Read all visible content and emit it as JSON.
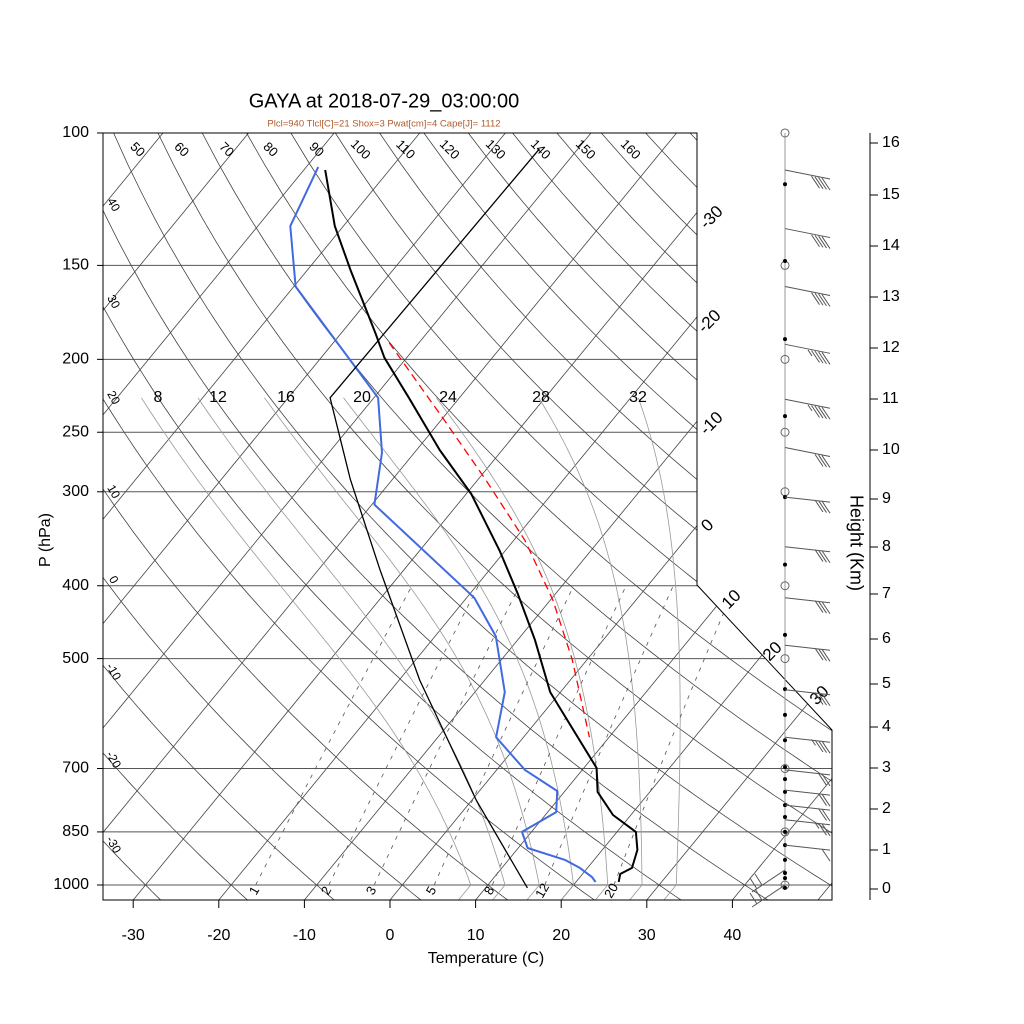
{
  "chart_data": {
    "type": "line",
    "subtype": "skew-T log-P sounding",
    "title": "GAYA at 2018-07-29_03:00:00",
    "subtitle": "Plcl=940 Tlcl[C]=21 Shox=3 Pwat[cm]=4 Cape[J]= 1112",
    "xlabel": "Temperature (C)",
    "ylabel": "P (hPa)",
    "y2label": "Height (Km)",
    "xlim": [
      -33.5,
      51.5
    ],
    "ylim_hpa": [
      1047,
      100
    ],
    "x_ticks": [
      -30,
      -20,
      -10,
      0,
      10,
      20,
      30,
      40
    ],
    "pressure_ticks": [
      100,
      150,
      200,
      250,
      300,
      400,
      500,
      700,
      850,
      1000
    ],
    "height_ticks_km": [
      0,
      1,
      2,
      3,
      4,
      5,
      6,
      7,
      8,
      9,
      10,
      11,
      12,
      13,
      14,
      15,
      16
    ],
    "isotherm_labels": [
      -30,
      -20,
      -10,
      0,
      10,
      20,
      30
    ],
    "dry_adiabat_labels_top": [
      50,
      60,
      70,
      80,
      90,
      100,
      110,
      120,
      130,
      140,
      150,
      160
    ],
    "dry_adiabat_labels_left": [
      40,
      30,
      20,
      10,
      0,
      -10,
      -20,
      -30
    ],
    "moist_adiabat_labels": [
      8,
      12,
      16,
      20,
      24,
      28,
      32
    ],
    "mixing_ratio_labels": [
      1,
      2,
      3,
      5,
      8,
      12,
      20
    ],
    "series": [
      {
        "name": "temperature",
        "color": "#000000",
        "p": [
          112,
          133,
          152,
          185,
          199,
          225,
          264,
          302,
          359,
          410,
          472,
          554,
          699,
          752,
          807,
          850,
          898,
          949,
          967,
          991
        ],
        "t": [
          -77.5,
          -71.0,
          -65.0,
          -55.9,
          -52.6,
          -45.9,
          -37.3,
          -29.4,
          -20.7,
          -14.4,
          -8.0,
          -1.2,
          11.5,
          13.9,
          17.9,
          22.2,
          24.1,
          25.2,
          24.4,
          25.0
        ]
      },
      {
        "name": "dewpoint",
        "color": "#4169e1",
        "p": [
          111,
          133,
          160,
          225,
          266,
          312,
          415,
          467,
          554,
          636,
          703,
          750,
          800,
          850,
          893,
          926,
          949,
          976,
          991
        ],
        "t": [
          -78.6,
          -76.2,
          -69.8,
          -49.5,
          -43.8,
          -39.7,
          -19.1,
          -12.9,
          -6.5,
          -3.2,
          3.3,
          9.1,
          11.0,
          8.9,
          11.1,
          16.6,
          19.1,
          21.4,
          22.3
        ]
      },
      {
        "name": "parcel",
        "color": "#ff0000",
        "p": [
          190,
          241,
          289,
          348,
          418,
          502,
          636
        ],
        "t": [
          -53.5,
          -39.6,
          -29.1,
          -18.7,
          -9.7,
          -1.7,
          7.7
        ]
      },
      {
        "name": "reference",
        "color": "#000000",
        "p": [
          1009,
          771,
          534,
          381,
          289,
          225,
          105
        ],
        "t": [
          14.9,
          0.5,
          -17.6,
          -32.8,
          -44.9,
          -55.1,
          -54.5
        ]
      }
    ],
    "wind_barbs": [
      {
        "p": 112,
        "kt": 40
      },
      {
        "p": 134,
        "kt": 40
      },
      {
        "p": 160,
        "kt": 40
      },
      {
        "p": 191,
        "kt": 35
      },
      {
        "p": 226,
        "kt": 35
      },
      {
        "p": 262,
        "kt": 30
      },
      {
        "p": 305,
        "kt": 30
      },
      {
        "p": 355,
        "kt": 30
      },
      {
        "p": 415,
        "kt": 30
      },
      {
        "p": 480,
        "kt": 30
      },
      {
        "p": 550,
        "kt": 30
      },
      {
        "p": 636,
        "kt": 25
      },
      {
        "p": 703,
        "kt": 20
      },
      {
        "p": 748,
        "kt": 20
      },
      {
        "p": 783,
        "kt": 20
      },
      {
        "p": 819,
        "kt": 15
      },
      {
        "p": 885,
        "kt": 10
      },
      {
        "p": 955,
        "kt": 10
      },
      {
        "p": 1000,
        "kt": 5
      }
    ],
    "data_levels_hpa": [
      117,
      148,
      188,
      238,
      305,
      375,
      465,
      549,
      594,
      642,
      697,
      723,
      752,
      783,
      812,
      850,
      885,
      926,
      964,
      979,
      1009
    ],
    "mandatory_levels_hpa": [
      100,
      150,
      200,
      250,
      300,
      400,
      500,
      700,
      850,
      1000
    ]
  }
}
